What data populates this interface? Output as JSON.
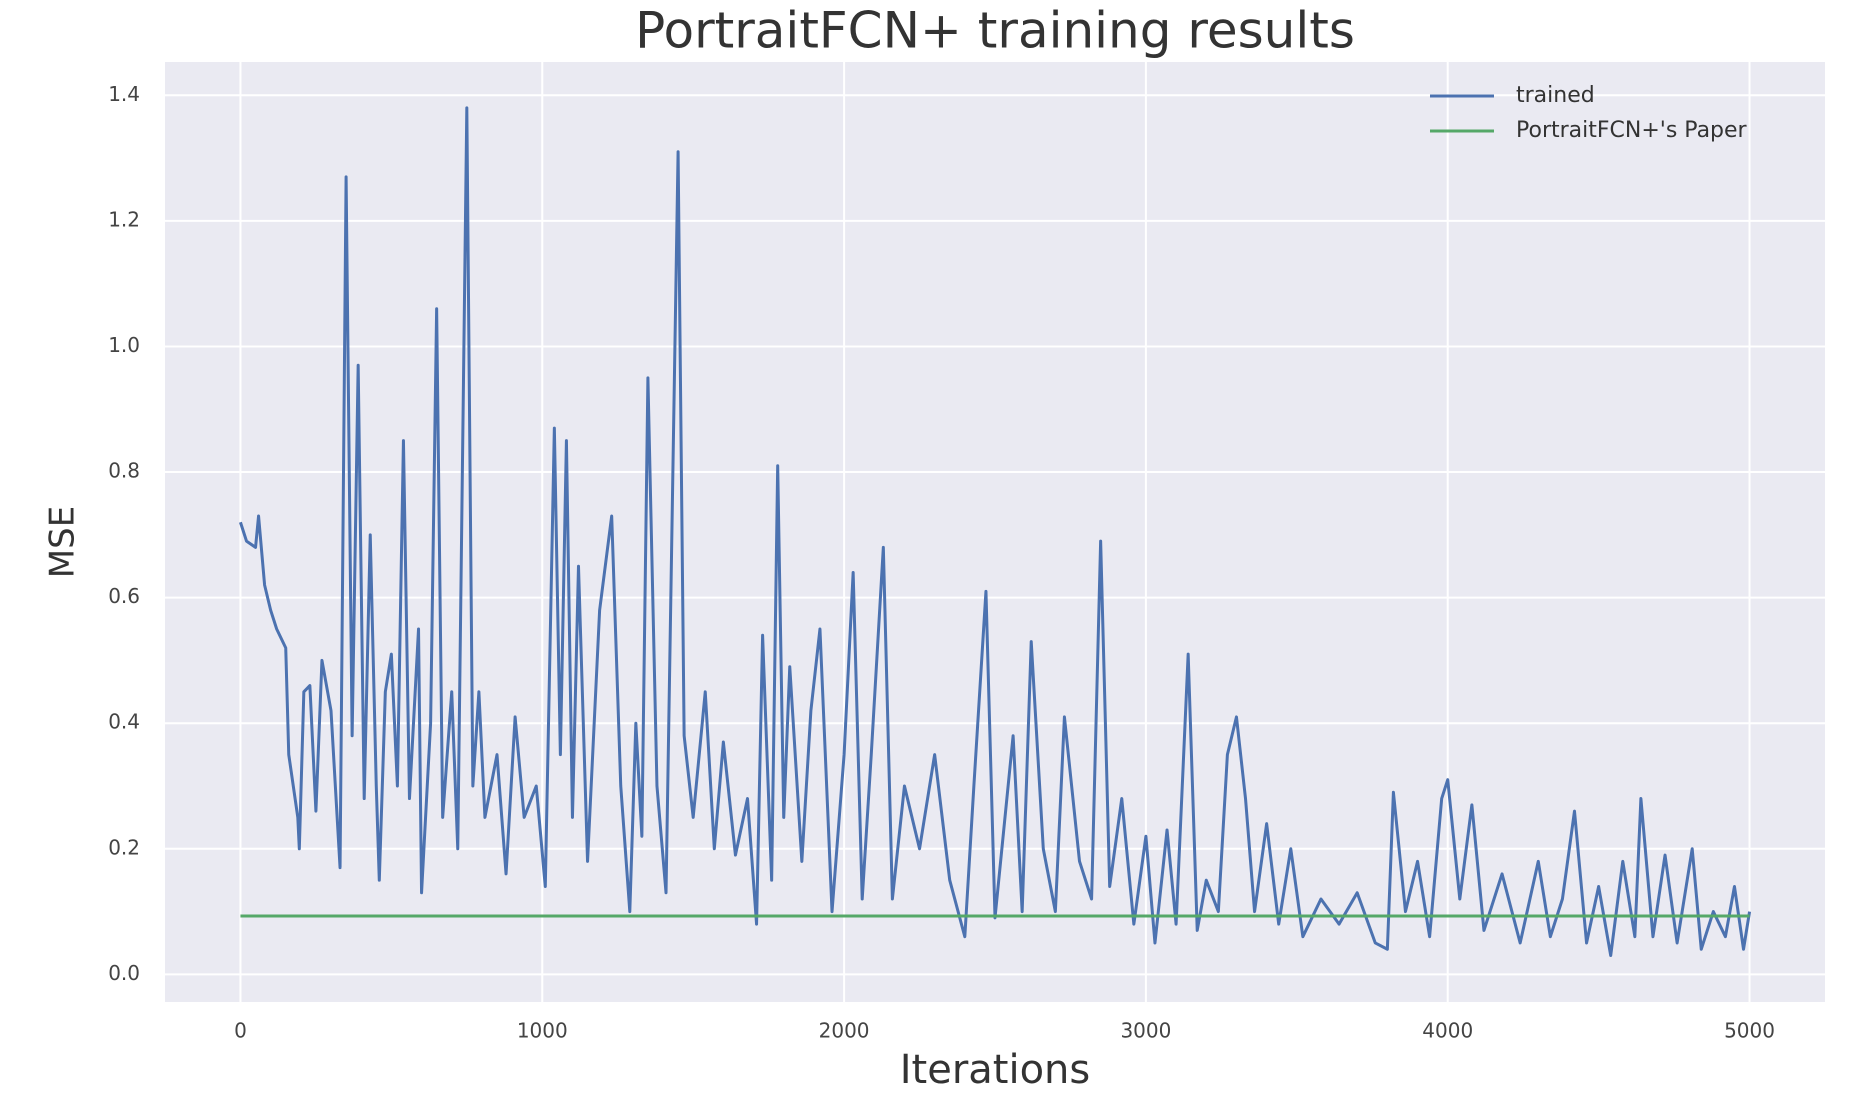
{
  "chart_data": {
    "type": "line",
    "title": "PortraitFCN+ training results",
    "x_label": "Iterations",
    "y_label": "MSE",
    "xlim": [
      -250,
      5250
    ],
    "ylim": [
      -0.044,
      1.453
    ],
    "xticks": [
      0,
      1000,
      2000,
      3000,
      4000,
      5000
    ],
    "yticks": [
      {
        "value": 0,
        "label": "0.0"
      },
      0.2,
      0.4,
      0.6,
      0.8,
      {
        "value": 1,
        "label": "1.0"
      },
      1.2,
      1.4
    ],
    "grid": true,
    "legend": "upper right",
    "series": [
      {
        "name": "trained",
        "color": "#4c72b0",
        "x": [
          0,
          20,
          50,
          60,
          80,
          100,
          120,
          150,
          160,
          190,
          195,
          210,
          230,
          250,
          270,
          300,
          330,
          350,
          370,
          390,
          410,
          430,
          450,
          460,
          480,
          500,
          520,
          540,
          560,
          590,
          600,
          630,
          650,
          670,
          700,
          720,
          750,
          770,
          790,
          810,
          850,
          880,
          910,
          940,
          980,
          1010,
          1040,
          1060,
          1080,
          1100,
          1120,
          1150,
          1190,
          1230,
          1260,
          1290,
          1310,
          1330,
          1350,
          1380,
          1410,
          1450,
          1470,
          1500,
          1540,
          1570,
          1600,
          1640,
          1680,
          1710,
          1730,
          1760,
          1780,
          1800,
          1820,
          1860,
          1890,
          1920,
          1960,
          2000,
          2030,
          2060,
          2090,
          2130,
          2160,
          2200,
          2250,
          2300,
          2350,
          2400,
          2430,
          2470,
          2500,
          2560,
          2590,
          2620,
          2660,
          2700,
          2730,
          2780,
          2820,
          2850,
          2880,
          2920,
          2960,
          3000,
          3030,
          3070,
          3100,
          3140,
          3170,
          3200,
          3240,
          3270,
          3300,
          3330,
          3360,
          3400,
          3440,
          3480,
          3520,
          3580,
          3640,
          3700,
          3760,
          3800,
          3820,
          3860,
          3900,
          3940,
          3980,
          4000,
          4040,
          4080,
          4120,
          4180,
          4240,
          4300,
          4340,
          4380,
          4420,
          4460,
          4500,
          4540,
          4580,
          4620,
          4640,
          4680,
          4720,
          4760,
          4810,
          4840,
          4880,
          4920,
          4950,
          4980,
          5000
        ],
        "values": [
          0.72,
          0.69,
          0.68,
          0.73,
          0.62,
          0.58,
          0.55,
          0.52,
          0.35,
          0.25,
          0.2,
          0.45,
          0.46,
          0.26,
          0.5,
          0.42,
          0.17,
          1.27,
          0.38,
          0.97,
          0.28,
          0.7,
          0.3,
          0.15,
          0.45,
          0.51,
          0.3,
          0.85,
          0.28,
          0.55,
          0.13,
          0.4,
          1.06,
          0.25,
          0.45,
          0.2,
          1.38,
          0.3,
          0.45,
          0.25,
          0.35,
          0.16,
          0.41,
          0.25,
          0.3,
          0.14,
          0.87,
          0.35,
          0.85,
          0.25,
          0.65,
          0.18,
          0.58,
          0.73,
          0.3,
          0.1,
          0.4,
          0.22,
          0.95,
          0.3,
          0.13,
          1.31,
          0.38,
          0.25,
          0.45,
          0.2,
          0.37,
          0.19,
          0.28,
          0.08,
          0.54,
          0.15,
          0.81,
          0.25,
          0.49,
          0.18,
          0.42,
          0.55,
          0.1,
          0.35,
          0.64,
          0.12,
          0.35,
          0.68,
          0.12,
          0.3,
          0.2,
          0.35,
          0.15,
          0.06,
          0.3,
          0.61,
          0.09,
          0.38,
          0.1,
          0.53,
          0.2,
          0.1,
          0.41,
          0.18,
          0.12,
          0.69,
          0.14,
          0.28,
          0.08,
          0.22,
          0.05,
          0.23,
          0.08,
          0.51,
          0.07,
          0.15,
          0.1,
          0.35,
          0.41,
          0.28,
          0.1,
          0.24,
          0.08,
          0.2,
          0.06,
          0.12,
          0.08,
          0.13,
          0.05,
          0.04,
          0.29,
          0.1,
          0.18,
          0.06,
          0.28,
          0.31,
          0.12,
          0.27,
          0.07,
          0.16,
          0.05,
          0.18,
          0.06,
          0.12,
          0.26,
          0.05,
          0.14,
          0.03,
          0.18,
          0.06,
          0.28,
          0.06,
          0.19,
          0.05,
          0.2,
          0.04,
          0.1,
          0.06,
          0.14,
          0.04,
          0.1
        ]
      },
      {
        "name": "PortraitFCN+'s Paper",
        "color": "#55a868",
        "x": [
          0,
          5000
        ],
        "values": [
          0.093,
          0.093
        ]
      }
    ]
  }
}
